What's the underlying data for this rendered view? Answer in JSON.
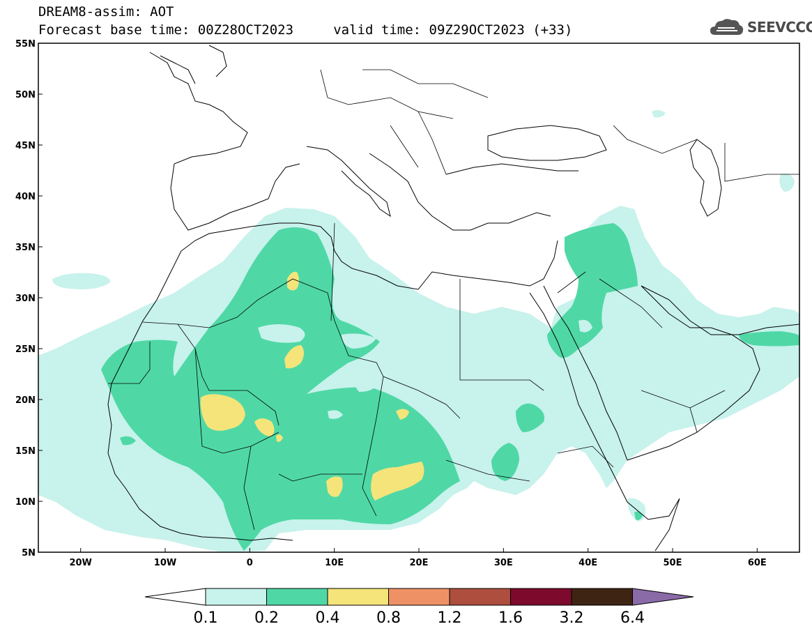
{
  "header": {
    "title_line1": "DREAM8-assim: AOT",
    "title_line2": "Forecast base time: 00Z28OCT2023     valid time: 09Z29OCT2023 (+33)",
    "logo_text": "SEEVCCC"
  },
  "map": {
    "lon_range": [
      -25,
      65
    ],
    "lat_range": [
      5,
      55
    ],
    "lat_labels": [
      "5N",
      "10N",
      "15N",
      "20N",
      "25N",
      "30N",
      "35N",
      "40N",
      "45N",
      "50N",
      "55N"
    ],
    "lon_labels": [
      "20W",
      "10W",
      "0",
      "10E",
      "20E",
      "30E",
      "40E",
      "50E",
      "60E"
    ],
    "colors": {
      "c01": "#c8f2ec",
      "c02": "#4fd8a6",
      "c04": "#f5e47a",
      "c08": "#ee9266",
      "c12": "#ad4e3f",
      "c16": "#7d0a2d",
      "c32": "#3e2412",
      "c64": "#8a6ba8",
      "outline": "#000000"
    }
  },
  "colorbar": {
    "labels": [
      "0.1",
      "0.2",
      "0.4",
      "0.8",
      "1.2",
      "1.6",
      "3.2",
      "6.4"
    ],
    "colors": [
      "#c8f2ec",
      "#4fd8a6",
      "#f5e47a",
      "#ee9266",
      "#ad4e3f",
      "#7d0a2d",
      "#3e2412"
    ],
    "under_color": "#ffffff",
    "over_color": "#8a6ba8"
  }
}
